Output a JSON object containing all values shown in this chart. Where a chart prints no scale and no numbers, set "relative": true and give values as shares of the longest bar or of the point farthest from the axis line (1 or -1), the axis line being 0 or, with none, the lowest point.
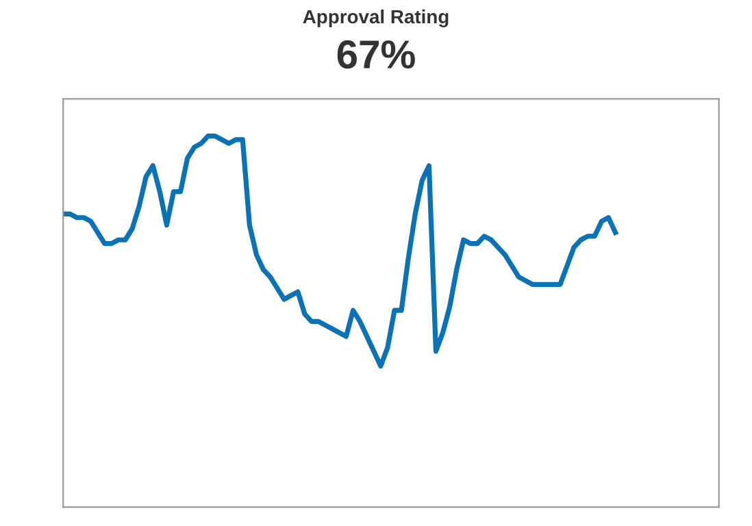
{
  "chart_data": {
    "type": "line",
    "title": "Approval Rating",
    "subtitle": "67%",
    "relative": true,
    "categories": [
      null,
      null,
      null,
      null,
      null,
      null,
      null,
      null,
      null,
      null,
      null,
      null,
      null,
      null,
      null,
      null,
      null,
      null,
      null,
      null,
      null,
      null,
      null,
      null,
      null,
      null,
      null,
      null,
      null,
      null,
      null,
      null,
      null,
      null,
      null,
      null,
      null,
      null,
      null,
      null,
      null,
      null,
      null,
      null,
      null,
      null,
      null,
      null,
      null,
      null,
      null,
      null,
      null,
      null,
      null,
      null,
      null,
      null,
      null,
      null,
      null,
      null,
      null,
      null,
      null,
      null,
      null,
      null,
      null,
      null,
      null,
      null,
      null,
      null,
      null,
      null,
      null,
      null,
      null,
      null,
      null,
      null,
      null,
      null,
      null,
      null,
      null,
      null,
      null,
      null,
      null,
      null,
      null,
      null,
      null,
      null
    ],
    "series": [
      {
        "color": "#0a72b5",
        "values": [
          0.79,
          0.79,
          0.78,
          0.78,
          0.77,
          0.74,
          0.71,
          0.71,
          0.72,
          0.72,
          0.75,
          0.81,
          0.89,
          0.92,
          0.85,
          0.76,
          0.85,
          0.85,
          0.94,
          0.97,
          0.98,
          1.0,
          1.0,
          0.99,
          0.98,
          0.99,
          0.99,
          0.76,
          0.68,
          0.64,
          0.62,
          0.59,
          0.56,
          0.57,
          0.58,
          0.52,
          0.5,
          0.5,
          0.49,
          0.48,
          0.47,
          0.46,
          0.53,
          0.5,
          0.46,
          0.42,
          0.38,
          0.43,
          0.53,
          0.53,
          0.67,
          0.79,
          0.88,
          0.92,
          0.42,
          0.47,
          0.54,
          0.64,
          0.72,
          0.71,
          0.71,
          0.73,
          0.72,
          0.7,
          0.68,
          0.65,
          0.62,
          0.61,
          0.6,
          0.6,
          0.6,
          0.6,
          0.6,
          0.65,
          0.7,
          0.72,
          0.73,
          0.73,
          0.77,
          0.78,
          0.74,
          null,
          null,
          null,
          null,
          null,
          null,
          null,
          null,
          null,
          null,
          null,
          null,
          null,
          null,
          null
        ]
      }
    ],
    "marker": "none",
    "line_style": "solid"
  }
}
